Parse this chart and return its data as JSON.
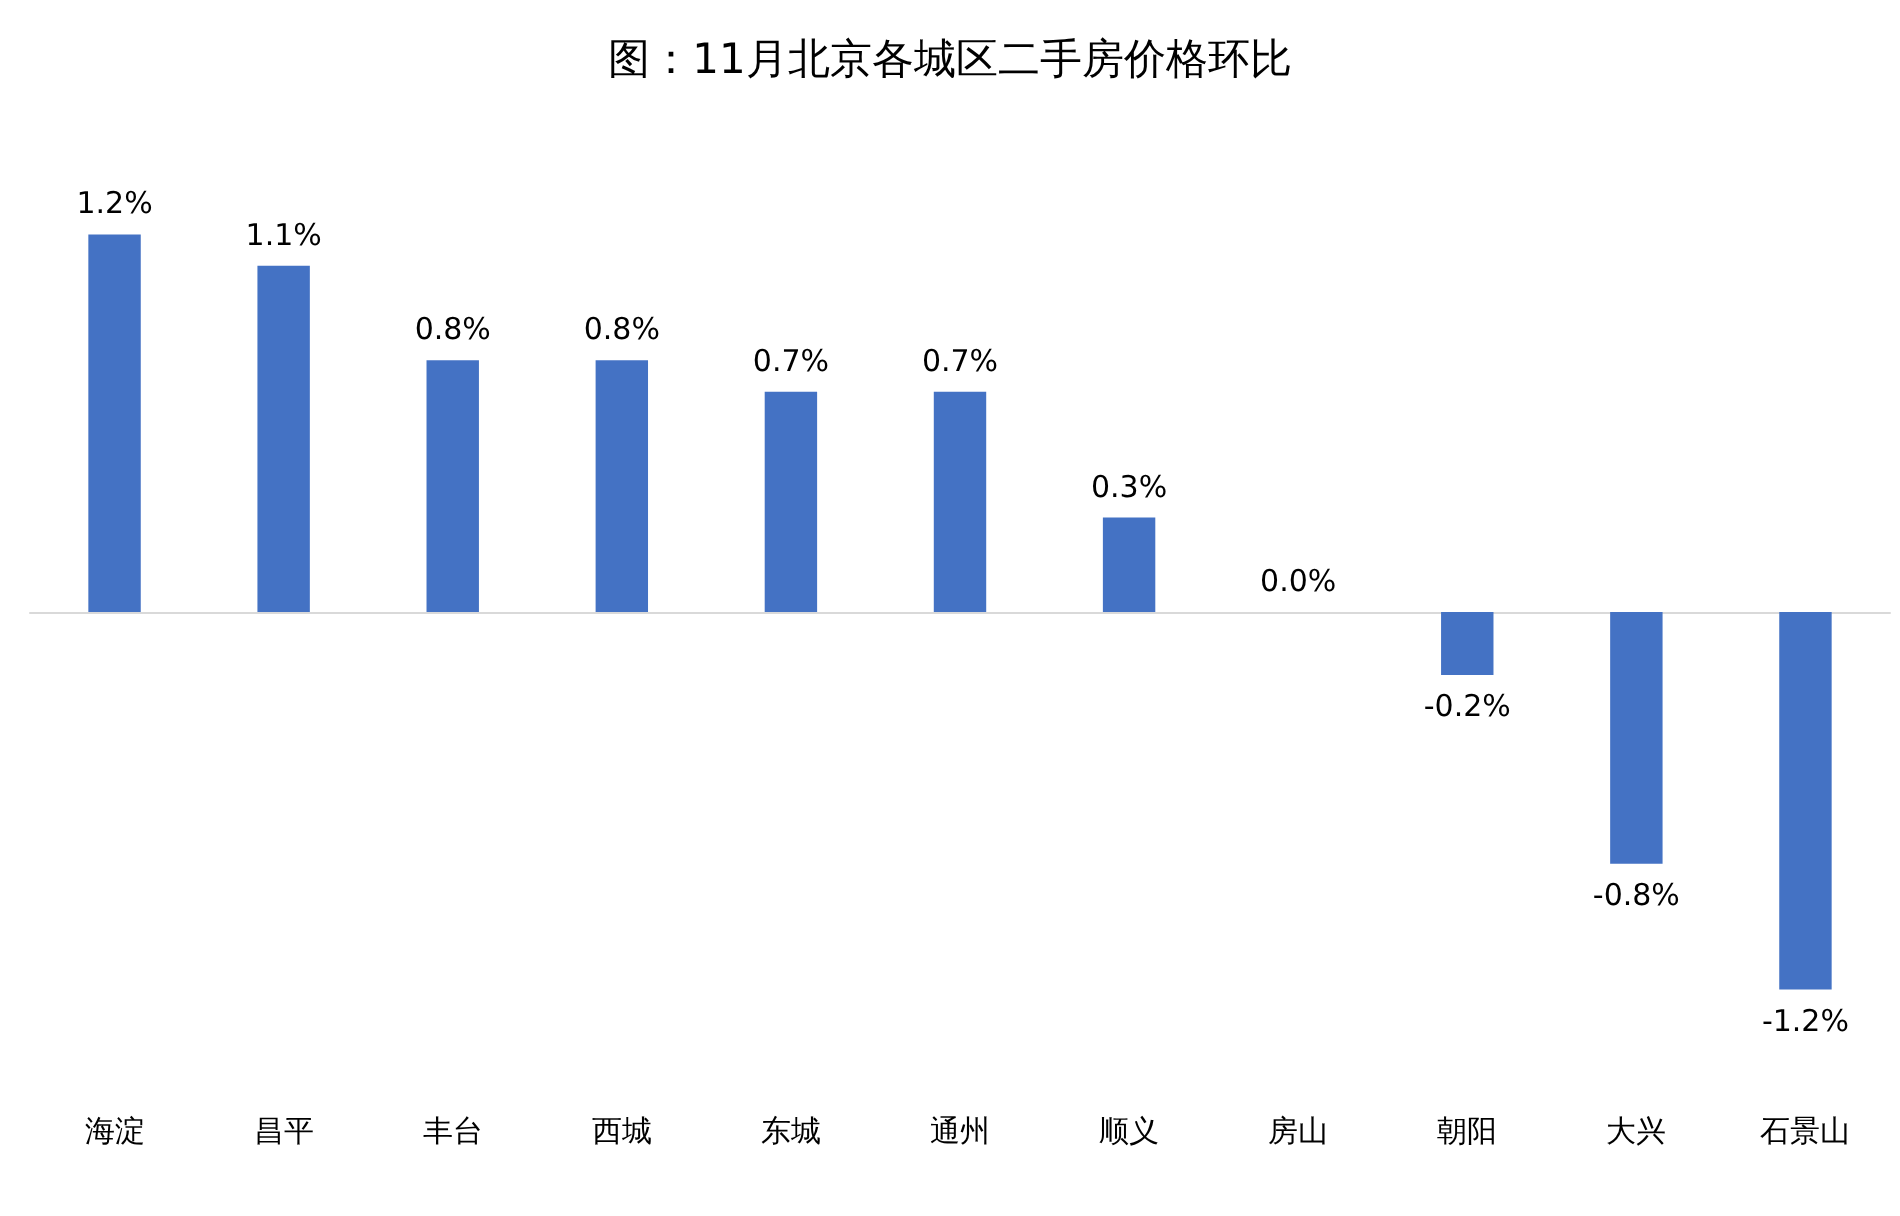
{
  "chart_data": {
    "type": "bar",
    "title": "图：11月北京各城区二手房价格环比",
    "categories": [
      "海淀",
      "昌平",
      "丰台",
      "西城",
      "东城",
      "通州",
      "顺义",
      "房山",
      "朝阳",
      "大兴",
      "石景山"
    ],
    "values": [
      1.2,
      1.1,
      0.8,
      0.8,
      0.7,
      0.7,
      0.3,
      0.0,
      -0.2,
      -0.8,
      -1.2
    ],
    "value_labels": [
      "1.2%",
      "1.1%",
      "0.8%",
      "0.8%",
      "0.7%",
      "0.7%",
      "0.3%",
      "0.0%",
      "-0.2%",
      "-0.8%",
      "-1.2%"
    ],
    "color": "#4472c4"
  }
}
